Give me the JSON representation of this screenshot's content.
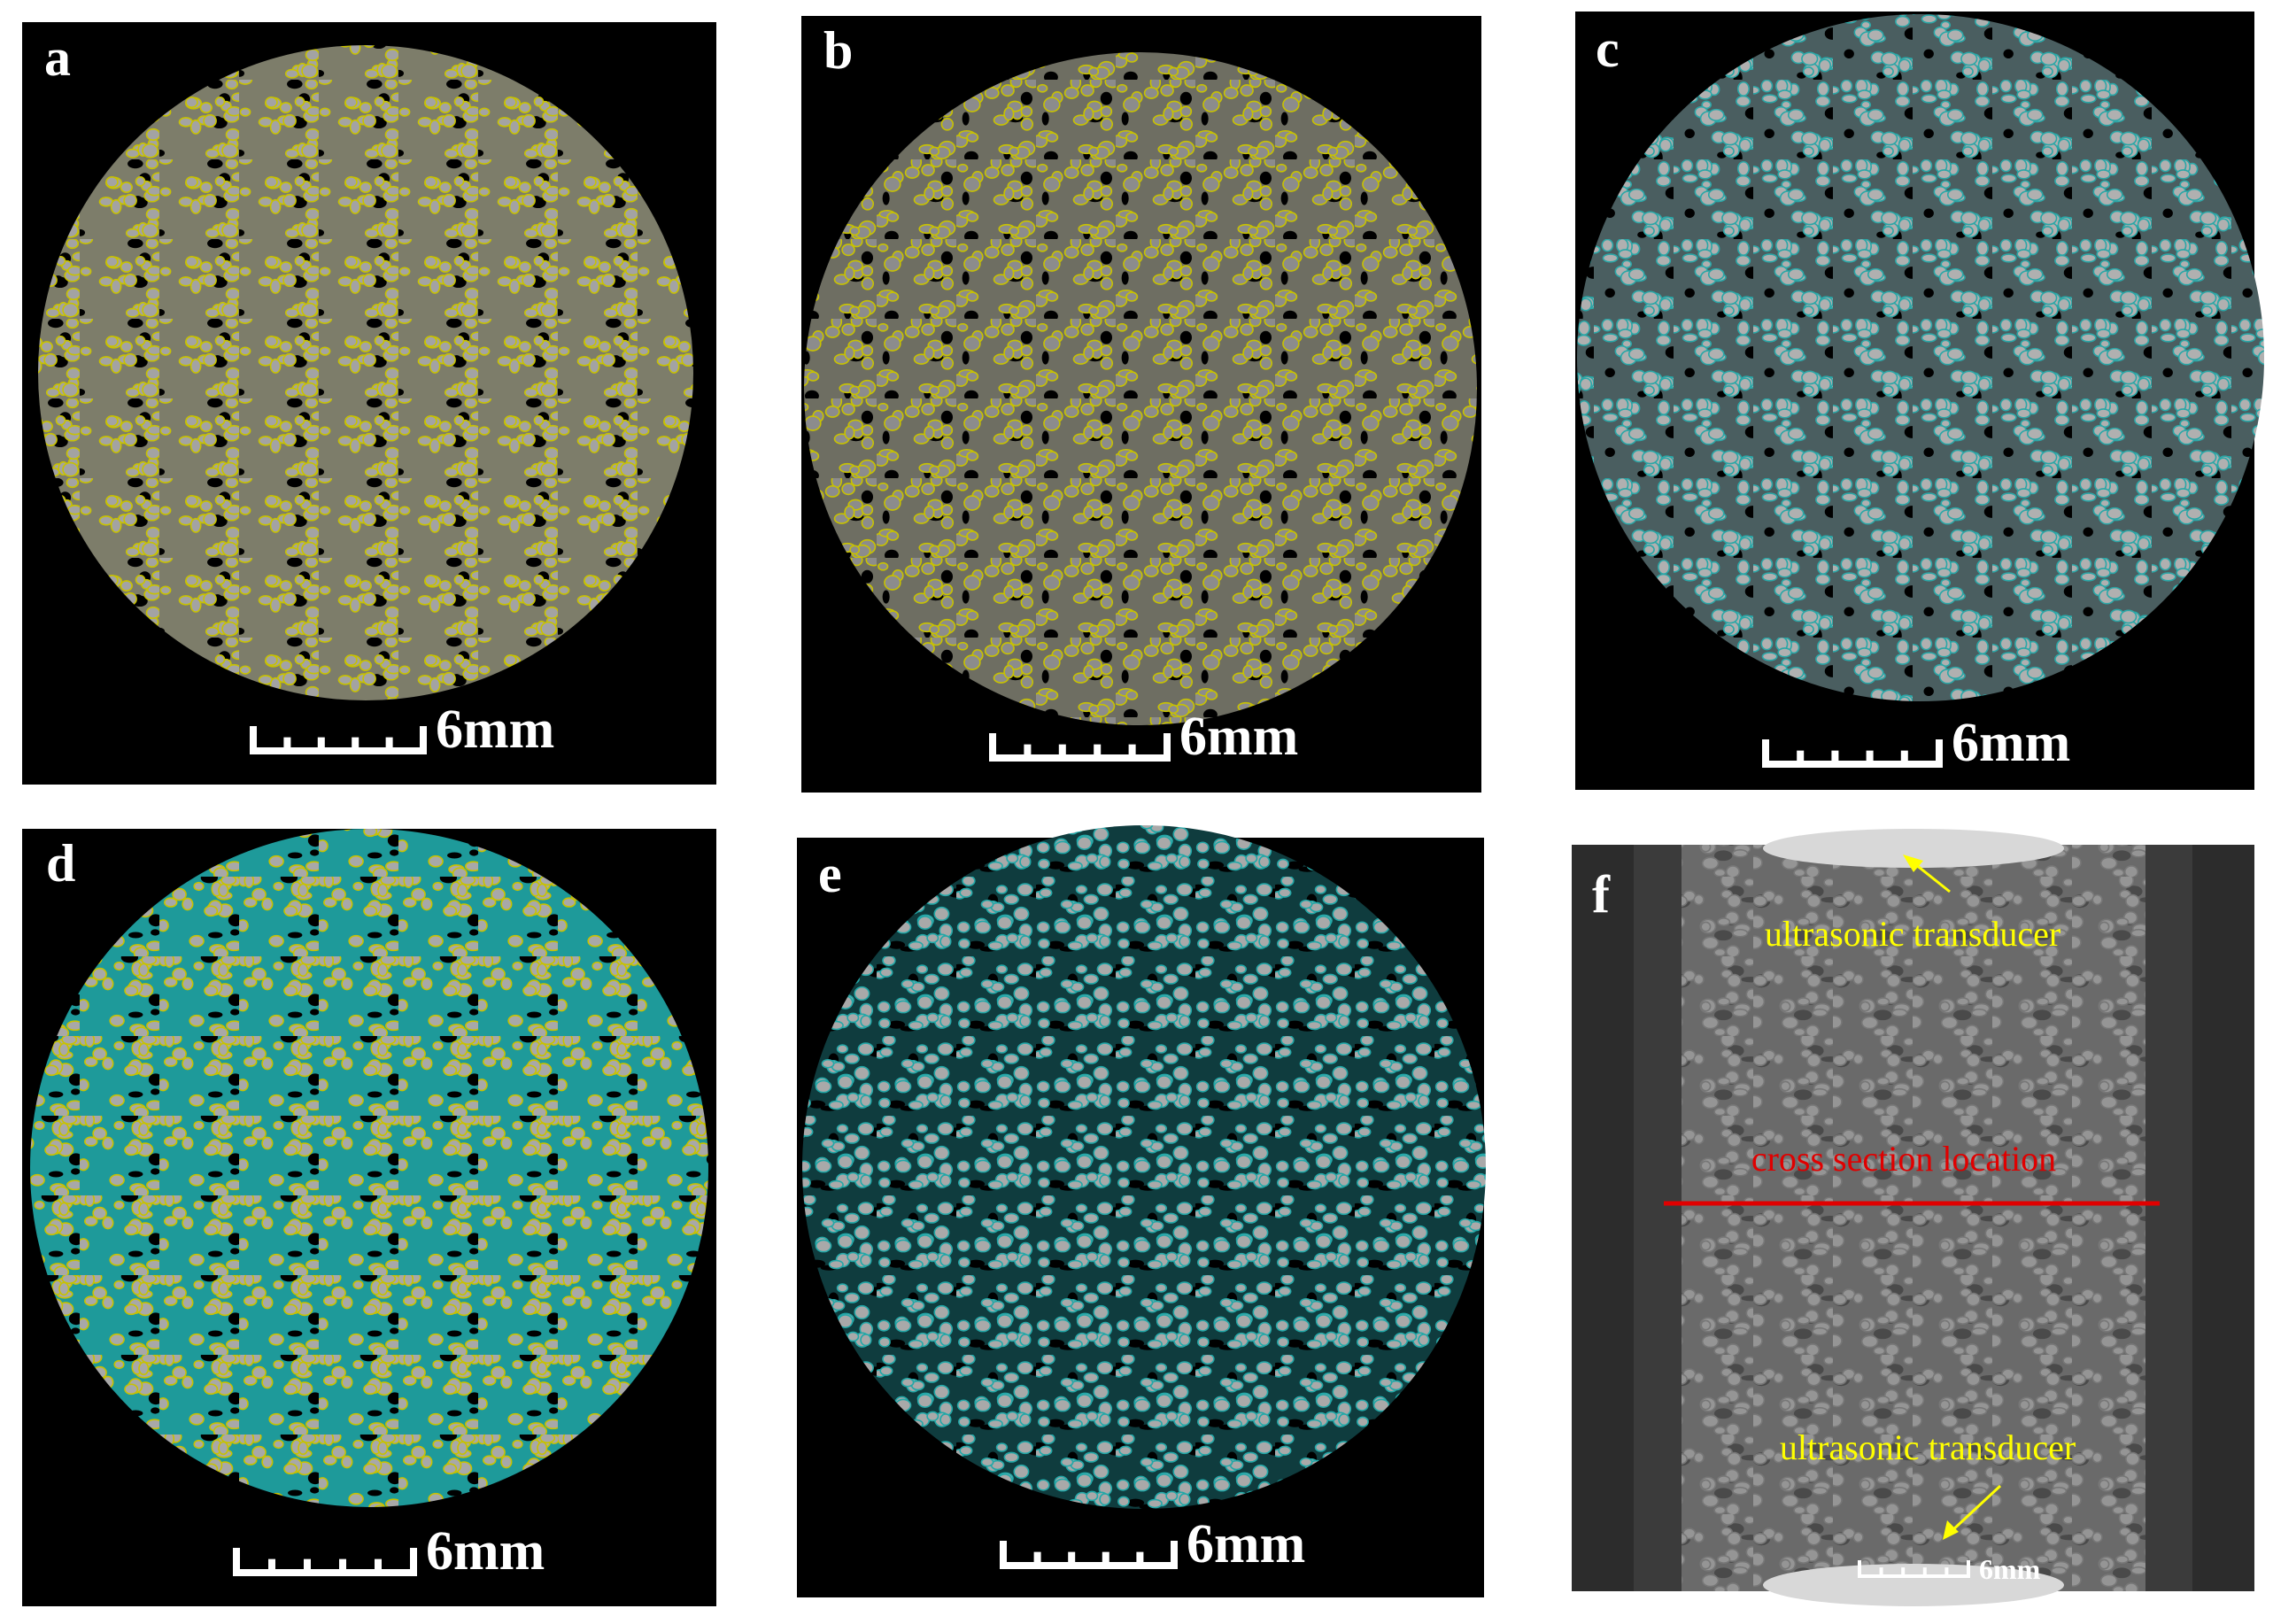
{
  "panels": [
    {
      "label": "a",
      "scale_bar": "6mm"
    },
    {
      "label": "b",
      "scale_bar": "6mm"
    },
    {
      "label": "c",
      "scale_bar": "6mm"
    },
    {
      "label": "d",
      "scale_bar": "6mm"
    },
    {
      "label": "e",
      "scale_bar": "6mm"
    },
    {
      "label": "f",
      "scale_bar": "6mm",
      "annotations": {
        "top": "ultrasonic transducer",
        "section": "cross section location",
        "bottom": "ultrasonic transducer"
      }
    }
  ]
}
